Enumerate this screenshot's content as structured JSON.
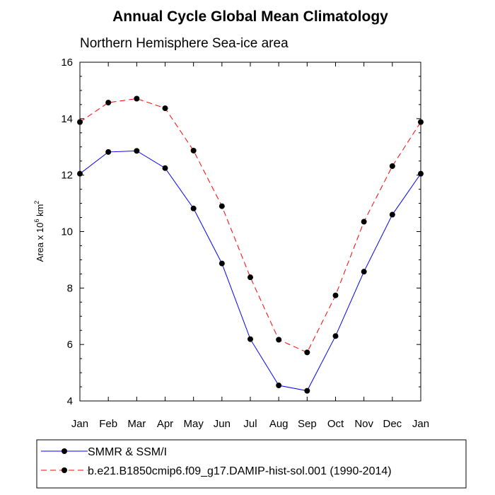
{
  "chart_data": {
    "type": "line",
    "title": "Annual Cycle Global Mean Climatology",
    "subtitle": "Northern Hemisphere Sea-ice area",
    "ylabel_main": "Area x 10",
    "ylabel_sup1": "6",
    "ylabel_unit": " km",
    "ylabel_sup2": "2",
    "xlabel": "",
    "categories": [
      "Jan",
      "Feb",
      "Mar",
      "Apr",
      "May",
      "Jun",
      "Jul",
      "Aug",
      "Sep",
      "Oct",
      "Nov",
      "Dec",
      "Jan"
    ],
    "ylim": [
      4,
      16
    ],
    "yticks": [
      4,
      6,
      8,
      10,
      12,
      14,
      16
    ],
    "grid": false,
    "legend_position": "bottom",
    "series": [
      {
        "name": "SMMR & SSM/I",
        "color": "#0000ff",
        "style": "solid",
        "marker": "filled-circle",
        "values": [
          12.05,
          12.82,
          12.86,
          12.25,
          10.82,
          8.87,
          6.19,
          4.55,
          4.36,
          6.3,
          8.58,
          10.6,
          12.05
        ]
      },
      {
        "name": "b.e21.B1850cmip6.f09_g17.DAMIP-hist-sol.001 (1990-2014)",
        "color": "#ff0000",
        "style": "dashed",
        "marker": "filled-circle",
        "values": [
          13.88,
          14.57,
          14.71,
          14.37,
          12.87,
          10.9,
          8.38,
          6.17,
          5.72,
          7.74,
          10.35,
          12.32,
          13.88
        ]
      }
    ]
  }
}
